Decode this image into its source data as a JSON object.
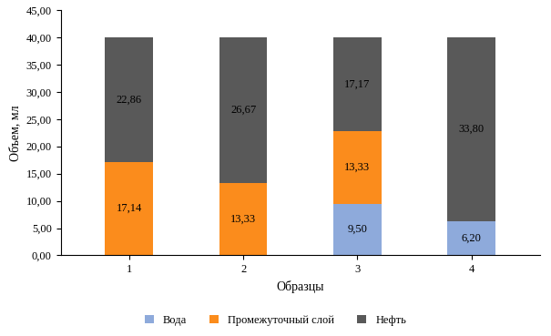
{
  "chart_data": {
    "type": "bar",
    "stacked": true,
    "data_labels": true,
    "x_label": "Образцы",
    "y_label": "Объем, мл",
    "categories": [
      "1",
      "2",
      "3",
      "4"
    ],
    "series": [
      {
        "name": "Вода",
        "color": "#8eaadb",
        "values": [
          null,
          null,
          9.5,
          6.2
        ],
        "value_labels": [
          null,
          null,
          "9,50",
          "6,20"
        ]
      },
      {
        "name": "Промежуточный слой",
        "color": "#fb8c1c",
        "values": [
          17.14,
          13.33,
          13.33,
          null
        ],
        "value_labels": [
          "17,14",
          "13,33",
          "13,33",
          null
        ]
      },
      {
        "name": "Нефть",
        "color": "#595959",
        "values": [
          22.86,
          26.67,
          17.17,
          33.8
        ],
        "value_labels": [
          "22,86",
          "26,67",
          "17,17",
          "33,80"
        ]
      }
    ],
    "ylim": [
      0,
      45
    ],
    "yticks": [
      {
        "value": 0,
        "label": "0,00"
      },
      {
        "value": 5,
        "label": "5,00"
      },
      {
        "value": 10,
        "label": "10,00"
      },
      {
        "value": 15,
        "label": "15,00"
      },
      {
        "value": 20,
        "label": "20,00"
      },
      {
        "value": 25,
        "label": "25,00"
      },
      {
        "value": 30,
        "label": "30,00"
      },
      {
        "value": 35,
        "label": "35,00"
      },
      {
        "value": 40,
        "label": "40,00"
      },
      {
        "value": 45,
        "label": "45,00"
      }
    ],
    "grid": false,
    "legend": "lower center"
  }
}
